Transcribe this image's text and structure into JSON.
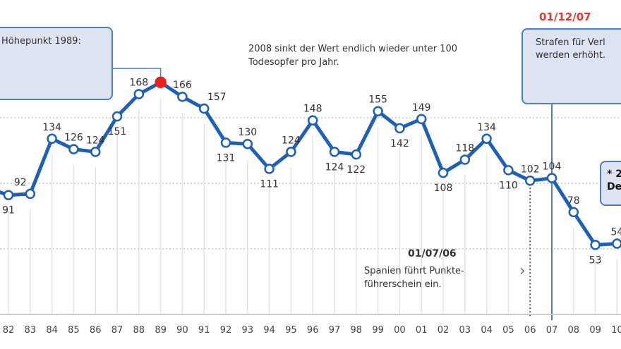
{
  "chart_data": {
    "type": "line",
    "title": "",
    "xlabel": "",
    "ylabel": "",
    "x": [
      "82",
      "83",
      "84",
      "85",
      "86",
      "87",
      "88",
      "89",
      "90",
      "91",
      "92",
      "93",
      "94",
      "95",
      "96",
      "97",
      "98",
      "99",
      "00",
      "01",
      "02",
      "03",
      "04",
      "05",
      "06",
      "07",
      "08",
      "09",
      "10"
    ],
    "values": [
      91,
      92,
      134,
      126,
      124,
      151,
      168,
      177,
      166,
      157,
      131,
      130,
      111,
      124,
      148,
      124,
      122,
      155,
      142,
      149,
      108,
      118,
      134,
      110,
      102,
      104,
      78,
      53,
      54
    ],
    "labels": [
      "91",
      "92",
      "134",
      "126",
      "124",
      "151",
      "168",
      "",
      "166",
      "157",
      "131",
      "130",
      "111",
      "124",
      "148",
      "124",
      "122",
      "155",
      "142",
      "149",
      "108",
      "118",
      "134",
      "110",
      "102",
      "104",
      "78",
      "53",
      "54"
    ],
    "highlight_index": 7,
    "ylim": [
      0,
      200
    ],
    "grid_y": [
      50,
      100,
      150
    ],
    "grid": true,
    "colors": {
      "line": "#1f5fb5",
      "highlight": "#e8201c",
      "annotation": "#e8372c",
      "box": "#dde3f0"
    }
  },
  "annotations": {
    "peak_box": "Höhepunkt 1989:",
    "note_2008_line1": "2008 sinkt der Wert endlich wieder unter 100",
    "note_2008_line2": "Todesopfer pro Jahr.",
    "date_dec07": "01/12/07",
    "box_dec07_line1": "Strafen für Verl",
    "box_dec07_line2": "werden erhöht.",
    "date_jul06": "01/07/06",
    "note_jul06_line1": "Spanien führt Punkte-",
    "note_jul06_line2": "führerschein ein.",
    "small_box_line1": "* 2",
    "small_box_line2": "De"
  }
}
